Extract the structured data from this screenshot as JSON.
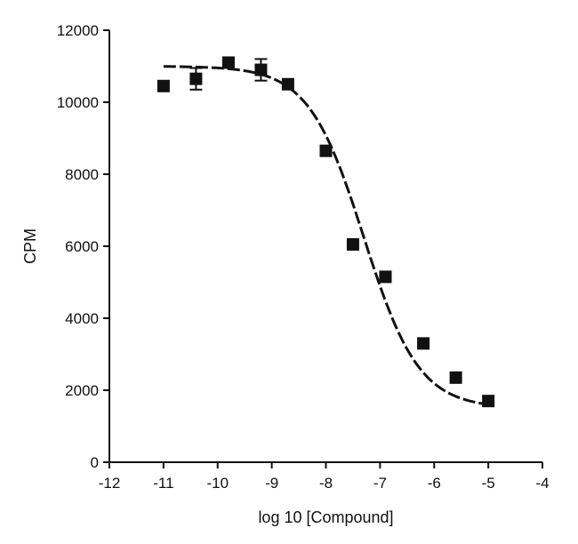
{
  "chart_data": {
    "type": "scatter",
    "title": "",
    "xlabel": "log 10 [Compound]",
    "ylabel": "CPM",
    "xlim": [
      -12,
      -4
    ],
    "ylim": [
      0,
      12000
    ],
    "x_ticks": [
      -12,
      -11,
      -10,
      -9,
      -8,
      -7,
      -6,
      -5,
      -4
    ],
    "y_ticks": [
      0,
      2000,
      4000,
      6000,
      8000,
      10000,
      12000
    ],
    "grid": false,
    "legend": "none",
    "marker_color": "#111111",
    "curve_color": "#111111",
    "points": [
      {
        "x": -11.0,
        "y": 10450,
        "err": 0
      },
      {
        "x": -10.4,
        "y": 10650,
        "err": 300
      },
      {
        "x": -9.8,
        "y": 11100,
        "err": 0
      },
      {
        "x": -9.2,
        "y": 10900,
        "err": 300
      },
      {
        "x": -8.7,
        "y": 10500,
        "err": 0
      },
      {
        "x": -8.0,
        "y": 8650,
        "err": 0
      },
      {
        "x": -7.5,
        "y": 6050,
        "err": 0
      },
      {
        "x": -6.9,
        "y": 5150,
        "err": 0
      },
      {
        "x": -6.2,
        "y": 3300,
        "err": 0
      },
      {
        "x": -5.6,
        "y": 2350,
        "err": 0
      },
      {
        "x": -5.0,
        "y": 1700,
        "err": 0
      }
    ],
    "fit": {
      "model": "sigmoidal dose-response",
      "top": 11000,
      "bottom": 1500,
      "logEC50": -7.3,
      "hill_slope": -0.85,
      "x_range": [
        -11,
        -5
      ]
    }
  }
}
